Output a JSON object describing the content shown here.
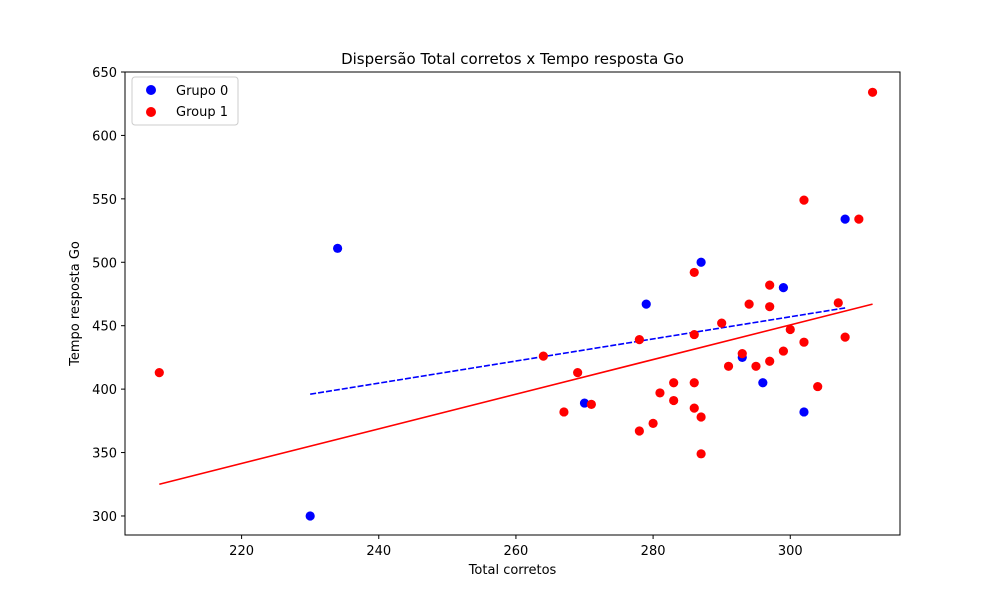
{
  "chart_data": {
    "type": "scatter",
    "title": "Dispersão Total corretos x Tempo resposta Go",
    "xlabel": "Total corretos",
    "ylabel": "Tempo resposta Go",
    "xlim": [
      203,
      316
    ],
    "ylim": [
      285,
      650
    ],
    "xticks": [
      220,
      240,
      260,
      280,
      300
    ],
    "yticks": [
      300,
      350,
      400,
      450,
      500,
      550,
      600,
      650
    ],
    "legend": {
      "placement": "top-left"
    },
    "grid": false,
    "series": [
      {
        "name": "Grupo 0",
        "color": "#0000ff",
        "points": [
          {
            "x": 230,
            "y": 300
          },
          {
            "x": 234,
            "y": 511
          },
          {
            "x": 270,
            "y": 389
          },
          {
            "x": 279,
            "y": 467
          },
          {
            "x": 287,
            "y": 500
          },
          {
            "x": 293,
            "y": 425
          },
          {
            "x": 296,
            "y": 405
          },
          {
            "x": 299,
            "y": 480
          },
          {
            "x": 302,
            "y": 382
          },
          {
            "x": 308,
            "y": 534
          }
        ],
        "trendline": {
          "style": "dashed",
          "x": [
            230,
            308
          ],
          "y": [
            396,
            464
          ]
        }
      },
      {
        "name": "Group 1",
        "color": "#ff0000",
        "points": [
          {
            "x": 208,
            "y": 413
          },
          {
            "x": 264,
            "y": 426
          },
          {
            "x": 267,
            "y": 382
          },
          {
            "x": 269,
            "y": 413
          },
          {
            "x": 271,
            "y": 388
          },
          {
            "x": 278,
            "y": 439
          },
          {
            "x": 278,
            "y": 367
          },
          {
            "x": 280,
            "y": 373
          },
          {
            "x": 281,
            "y": 397
          },
          {
            "x": 283,
            "y": 405
          },
          {
            "x": 283,
            "y": 391
          },
          {
            "x": 286,
            "y": 492
          },
          {
            "x": 286,
            "y": 443
          },
          {
            "x": 286,
            "y": 405
          },
          {
            "x": 286,
            "y": 385
          },
          {
            "x": 287,
            "y": 378
          },
          {
            "x": 287,
            "y": 349
          },
          {
            "x": 290,
            "y": 452
          },
          {
            "x": 291,
            "y": 418
          },
          {
            "x": 293,
            "y": 428
          },
          {
            "x": 294,
            "y": 467
          },
          {
            "x": 295,
            "y": 418
          },
          {
            "x": 297,
            "y": 482
          },
          {
            "x": 297,
            "y": 465
          },
          {
            "x": 297,
            "y": 422
          },
          {
            "x": 299,
            "y": 430
          },
          {
            "x": 300,
            "y": 447
          },
          {
            "x": 302,
            "y": 549
          },
          {
            "x": 302,
            "y": 437
          },
          {
            "x": 304,
            "y": 402
          },
          {
            "x": 307,
            "y": 468
          },
          {
            "x": 308,
            "y": 441
          },
          {
            "x": 310,
            "y": 534
          },
          {
            "x": 312,
            "y": 634
          }
        ],
        "trendline": {
          "style": "solid",
          "x": [
            208,
            312
          ],
          "y": [
            325,
            467
          ]
        }
      }
    ]
  }
}
